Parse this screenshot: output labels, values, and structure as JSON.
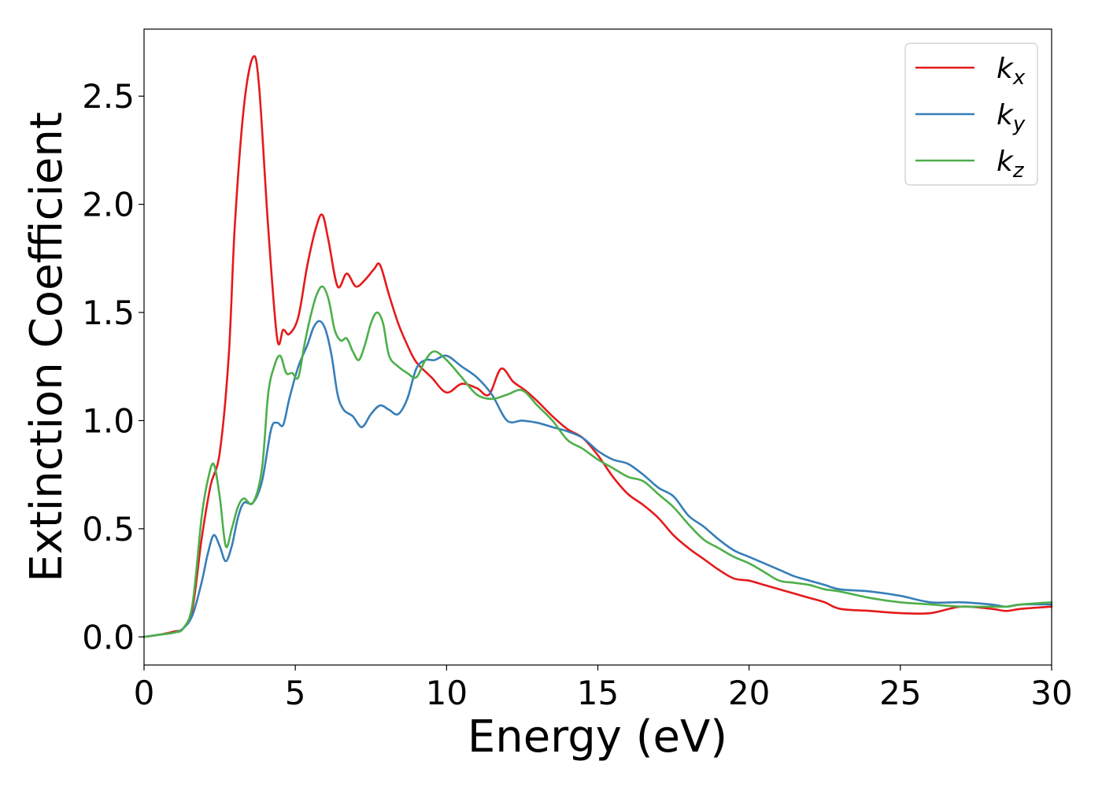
{
  "chart_data": {
    "type": "line",
    "title": "",
    "xlabel": "Energy (eV)",
    "ylabel": "Extinction Coefficient",
    "xlim": [
      0,
      30
    ],
    "ylim": [
      -0.13,
      2.81
    ],
    "xticks": [
      0,
      5,
      10,
      15,
      20,
      25,
      30
    ],
    "xtick_labels": [
      "0",
      "5",
      "10",
      "15",
      "20",
      "25",
      "30"
    ],
    "yticks": [
      0.0,
      0.5,
      1.0,
      1.5,
      2.0,
      2.5
    ],
    "ytick_labels": [
      "0.0",
      "0.5",
      "1.0",
      "1.5",
      "2.0",
      "2.5"
    ],
    "grid": false,
    "legend_position": "top-right",
    "series": [
      {
        "name": "kx",
        "label_base": "k",
        "label_sub": "x",
        "color": "#e41a1c",
        "x": [
          0,
          0.5,
          1.0,
          1.3,
          1.6,
          1.9,
          2.2,
          2.5,
          2.8,
          3.0,
          3.3,
          3.6,
          3.8,
          4.1,
          4.4,
          4.6,
          4.8,
          5.1,
          5.4,
          5.7,
          5.9,
          6.1,
          6.4,
          6.7,
          7.0,
          7.3,
          7.6,
          7.8,
          8.1,
          8.4,
          8.7,
          9.0,
          9.5,
          10.0,
          10.5,
          11.0,
          11.4,
          11.8,
          12.2,
          12.6,
          13.0,
          13.5,
          14.0,
          14.5,
          15.0,
          15.5,
          16.0,
          16.5,
          17.0,
          17.5,
          18.0,
          18.5,
          19.0,
          19.5,
          20.0,
          20.5,
          21.0,
          21.5,
          22.0,
          22.5,
          23.0,
          24.0,
          25.0,
          26.0,
          27.0,
          28.0,
          28.5,
          29.0,
          30.0
        ],
        "y": [
          0.0,
          0.01,
          0.025,
          0.04,
          0.13,
          0.45,
          0.7,
          0.85,
          1.3,
          1.9,
          2.45,
          2.68,
          2.55,
          1.9,
          1.38,
          1.42,
          1.4,
          1.48,
          1.72,
          1.9,
          1.95,
          1.83,
          1.62,
          1.68,
          1.62,
          1.65,
          1.7,
          1.72,
          1.58,
          1.45,
          1.35,
          1.27,
          1.2,
          1.13,
          1.17,
          1.15,
          1.12,
          1.24,
          1.18,
          1.14,
          1.09,
          1.02,
          0.96,
          0.92,
          0.84,
          0.74,
          0.66,
          0.61,
          0.55,
          0.47,
          0.41,
          0.36,
          0.31,
          0.27,
          0.26,
          0.24,
          0.22,
          0.2,
          0.18,
          0.16,
          0.13,
          0.12,
          0.11,
          0.11,
          0.14,
          0.13,
          0.12,
          0.13,
          0.14
        ]
      },
      {
        "name": "ky",
        "label_base": "k",
        "label_sub": "y",
        "color": "#377eb8",
        "x": [
          0,
          0.5,
          1.0,
          1.3,
          1.6,
          1.9,
          2.1,
          2.3,
          2.5,
          2.7,
          2.9,
          3.1,
          3.3,
          3.6,
          3.9,
          4.2,
          4.4,
          4.6,
          4.8,
          5.1,
          5.4,
          5.6,
          5.8,
          6.0,
          6.2,
          6.4,
          6.6,
          6.9,
          7.2,
          7.5,
          7.8,
          8.1,
          8.4,
          8.7,
          9.0,
          9.3,
          9.6,
          10.0,
          10.5,
          11.0,
          11.5,
          12.0,
          12.5,
          13.0,
          13.5,
          14.0,
          14.5,
          15.0,
          15.5,
          16.0,
          16.5,
          17.0,
          17.5,
          18.0,
          18.5,
          19.0,
          19.5,
          20.0,
          20.5,
          21.0,
          21.5,
          22.0,
          22.5,
          23.0,
          24.0,
          25.0,
          26.0,
          27.0,
          28.0,
          28.5,
          29.0,
          30.0
        ],
        "y": [
          0.0,
          0.01,
          0.02,
          0.04,
          0.1,
          0.25,
          0.38,
          0.47,
          0.42,
          0.35,
          0.42,
          0.55,
          0.62,
          0.62,
          0.72,
          0.96,
          0.99,
          0.98,
          1.1,
          1.25,
          1.35,
          1.43,
          1.46,
          1.42,
          1.3,
          1.12,
          1.05,
          1.02,
          0.97,
          1.03,
          1.07,
          1.05,
          1.03,
          1.1,
          1.24,
          1.28,
          1.28,
          1.3,
          1.25,
          1.2,
          1.12,
          1.0,
          1.0,
          0.99,
          0.97,
          0.95,
          0.92,
          0.86,
          0.82,
          0.8,
          0.75,
          0.69,
          0.65,
          0.56,
          0.51,
          0.45,
          0.4,
          0.37,
          0.34,
          0.31,
          0.28,
          0.26,
          0.24,
          0.22,
          0.21,
          0.19,
          0.16,
          0.16,
          0.15,
          0.14,
          0.15,
          0.15
        ]
      },
      {
        "name": "kz",
        "label_base": "k",
        "label_sub": "z",
        "color": "#4daf4a",
        "x": [
          0,
          0.5,
          1.0,
          1.3,
          1.6,
          1.9,
          2.1,
          2.3,
          2.5,
          2.7,
          2.9,
          3.1,
          3.3,
          3.6,
          3.9,
          4.1,
          4.3,
          4.5,
          4.7,
          4.9,
          5.1,
          5.3,
          5.5,
          5.7,
          5.9,
          6.1,
          6.3,
          6.5,
          6.7,
          6.9,
          7.1,
          7.3,
          7.5,
          7.7,
          7.9,
          8.1,
          8.4,
          8.7,
          9.0,
          9.3,
          9.6,
          10.0,
          10.5,
          11.0,
          11.5,
          12.0,
          12.5,
          13.0,
          13.5,
          14.0,
          14.5,
          15.0,
          15.5,
          16.0,
          16.5,
          17.0,
          17.5,
          18.0,
          18.5,
          19.0,
          19.5,
          20.0,
          20.5,
          21.0,
          21.5,
          22.0,
          22.5,
          23.0,
          24.0,
          25.0,
          26.0,
          27.0,
          28.0,
          28.5,
          29.0,
          30.0
        ],
        "y": [
          0.0,
          0.01,
          0.02,
          0.04,
          0.15,
          0.55,
          0.72,
          0.8,
          0.65,
          0.42,
          0.5,
          0.6,
          0.64,
          0.62,
          0.78,
          1.12,
          1.25,
          1.3,
          1.22,
          1.22,
          1.2,
          1.35,
          1.48,
          1.58,
          1.62,
          1.56,
          1.42,
          1.37,
          1.38,
          1.32,
          1.28,
          1.35,
          1.45,
          1.5,
          1.45,
          1.3,
          1.25,
          1.22,
          1.2,
          1.28,
          1.32,
          1.28,
          1.2,
          1.12,
          1.1,
          1.12,
          1.14,
          1.07,
          1.0,
          0.91,
          0.87,
          0.82,
          0.78,
          0.74,
          0.72,
          0.66,
          0.6,
          0.52,
          0.45,
          0.41,
          0.37,
          0.34,
          0.3,
          0.26,
          0.25,
          0.24,
          0.22,
          0.21,
          0.18,
          0.16,
          0.15,
          0.14,
          0.14,
          0.14,
          0.15,
          0.16
        ]
      }
    ]
  }
}
